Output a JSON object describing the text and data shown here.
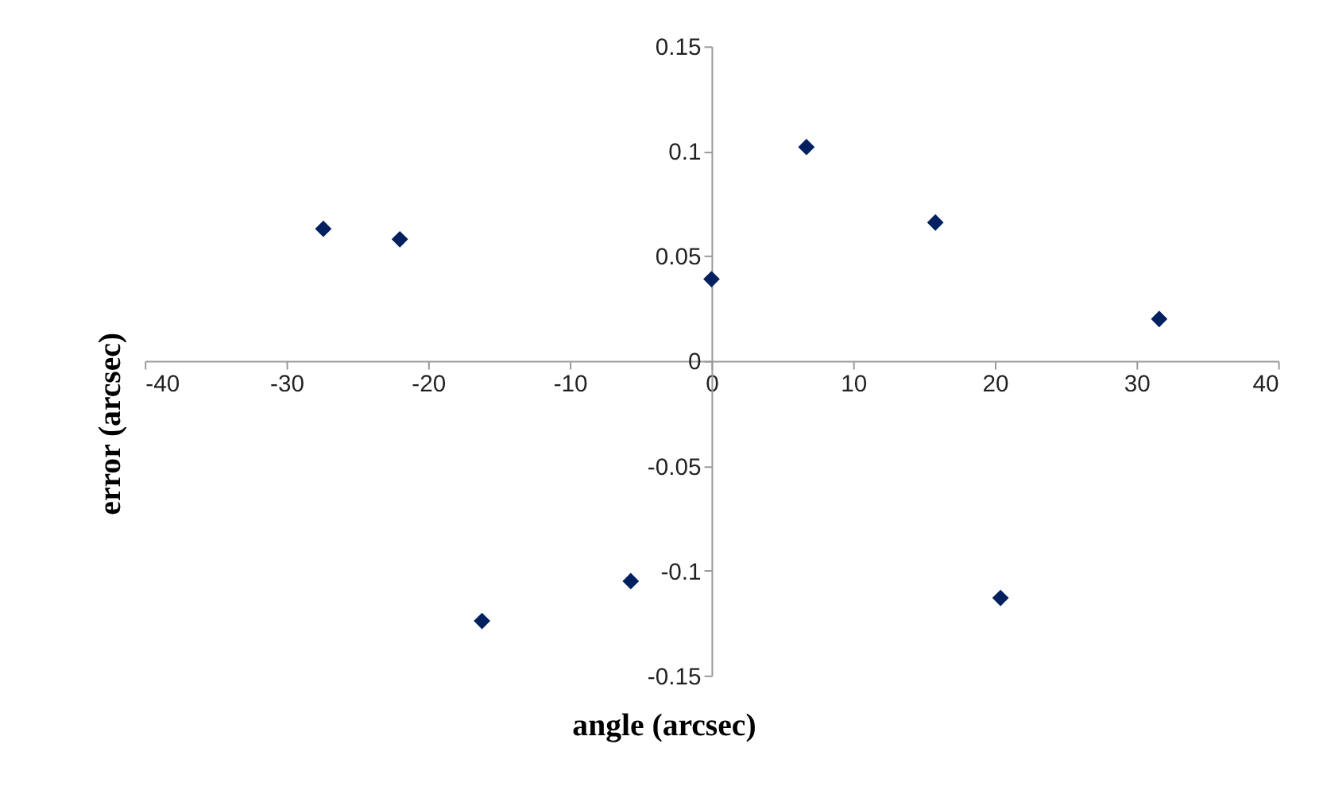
{
  "chart_data": {
    "type": "scatter",
    "xlabel": "angle (arcsec)",
    "ylabel": "error (arcsec)",
    "x": [
      -27.4,
      -22,
      -16.2,
      -5.7,
      0,
      6.7,
      15.8,
      31.6,
      20.4
    ],
    "series": [
      {
        "color": "#002060",
        "values": [
          0.063,
          0.058,
          -0.124,
          -0.105,
          0.039,
          0.102,
          0.066,
          0.02,
          -0.113
        ]
      }
    ],
    "xlim": [
      -40,
      40
    ],
    "xticks": [
      -40,
      -30,
      -20,
      -10,
      0,
      10,
      20,
      30,
      40
    ],
    "ylim": [
      -0.15,
      0.15
    ],
    "yticks": [
      -0.15,
      -0.1,
      -0.05,
      0,
      0.05,
      0.1,
      0.15
    ],
    "grid": false,
    "legend": false,
    "marker": "diamond"
  }
}
